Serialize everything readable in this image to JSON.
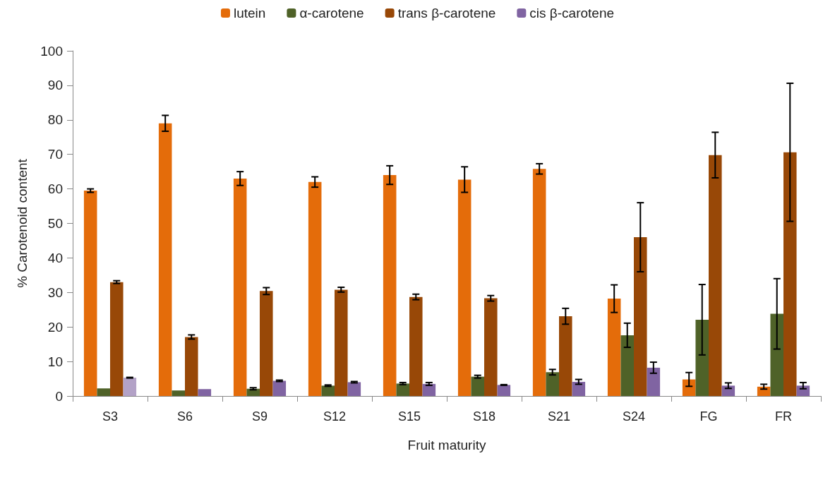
{
  "chart_data": {
    "type": "bar",
    "xlabel": "Fruit maturity",
    "ylabel": "% Carotenoid content",
    "categories": [
      "S3",
      "S6",
      "S9",
      "S12",
      "S15",
      "S18",
      "S21",
      "S24",
      "FG",
      "FR"
    ],
    "series": [
      {
        "name": "lutein",
        "color": "#e46c0a",
        "values": [
          59.5,
          79,
          63,
          62,
          64,
          62.7,
          65.8,
          28.2,
          4.8,
          2.7
        ],
        "errors": [
          0.5,
          2.3,
          2,
          1.5,
          2.7,
          3.7,
          1.5,
          4,
          2,
          0.7
        ]
      },
      {
        "name": "α-carotene",
        "color": "#4f6228",
        "values": [
          2.2,
          1.6,
          2.1,
          3.0,
          3.6,
          5.6,
          6.9,
          17.6,
          22.1,
          23.8
        ],
        "errors": [
          null,
          null,
          0.3,
          0.2,
          0.3,
          0.4,
          0.8,
          3.5,
          10.2,
          10.2
        ]
      },
      {
        "name": "trans β-carotene",
        "color": "#984807",
        "values": [
          33,
          17.1,
          30.4,
          30.8,
          28.7,
          28.3,
          23.1,
          46,
          69.8,
          70.6
        ],
        "errors": [
          0.4,
          0.6,
          1,
          0.7,
          0.8,
          0.8,
          2.3,
          10,
          6.6,
          20
        ]
      },
      {
        "name": "cis β-carotene",
        "color": "#8064a2",
        "colors": [
          "#b3a2c7",
          "#8064a2",
          "#8064a2",
          "#8064a2",
          "#8064a2",
          "#8064a2",
          "#8064a2",
          "#8064a2",
          "#8064a2",
          "#8064a2"
        ],
        "values": [
          5.3,
          2.0,
          4.4,
          4.0,
          3.5,
          3.2,
          4.1,
          8.2,
          3.0,
          3.0
        ],
        "errors": [
          0.1,
          null,
          0.2,
          0.2,
          0.4,
          0.1,
          0.7,
          1.6,
          0.8,
          0.9
        ]
      }
    ],
    "ylim": [
      0,
      100
    ],
    "yticks": [
      0,
      10,
      20,
      30,
      40,
      50,
      60,
      70,
      80,
      90,
      100
    ],
    "grid": false,
    "legend": "top"
  }
}
